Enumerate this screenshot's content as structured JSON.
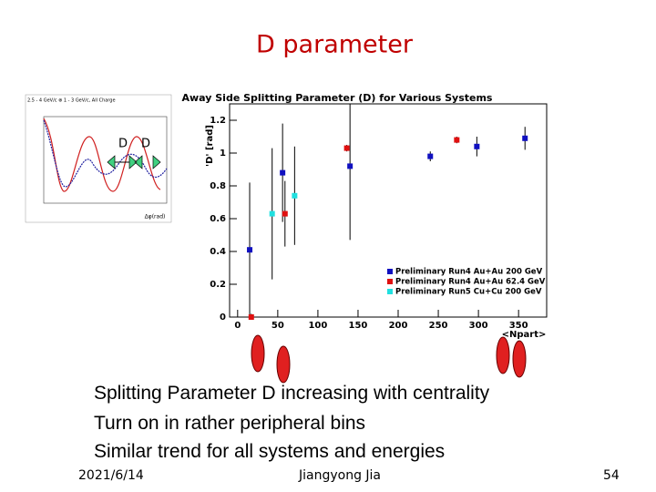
{
  "slide": {
    "title": "D parameter",
    "bullets": [
      "Splitting Parameter D increasing with centrality",
      "Turn on in rather peripheral bins",
      "Similar trend for all systems and energies"
    ],
    "footer": {
      "date": "2021/6/14",
      "author": "Jiangyong Jia",
      "page": "54"
    }
  },
  "inset": {
    "title": "2.5 - 4 GeV/c ⊗ 1 - 3 GeV/c, All Charge",
    "labels": [
      "D",
      "D"
    ],
    "x_label": "Δφ(rad)"
  },
  "chart_data": {
    "type": "scatter",
    "title": "Away Side Splitting Parameter (D) for Various Systems",
    "y_label": "'D' [rad]",
    "x_label": "<Npart>",
    "xlim": [
      -10,
      385
    ],
    "ylim": [
      0,
      1.3
    ],
    "xticks": [
      0,
      50,
      100,
      150,
      200,
      250,
      300,
      350
    ],
    "yticks": [
      0,
      0.2,
      0.4,
      0.6,
      0.8,
      1,
      1.2
    ],
    "legend": "lower right",
    "series": [
      {
        "name": "Preliminary Run4 Au+Au 200 GeV",
        "color": "#1010c0",
        "x": [
          15,
          56,
          140,
          240,
          298,
          358
        ],
        "values": [
          0.41,
          0.88,
          0.92,
          0.98,
          1.04,
          1.09
        ],
        "errors": [
          0.41,
          0.3,
          0.45,
          0.03,
          0.06,
          0.07
        ]
      },
      {
        "name": "Preliminary Run4 Au+Au 62.4 GeV",
        "color": "#e01010",
        "x": [
          17,
          59,
          136,
          273
        ],
        "values": [
          0,
          0.63,
          1.03,
          1.08
        ],
        "errors": [
          0.02,
          0.2,
          0.02,
          0.02
        ]
      },
      {
        "name": "Preliminary Run5 Cu+Cu 200 GeV",
        "color": "#20e0e0",
        "x": [
          43,
          71
        ],
        "values": [
          0.63,
          0.74
        ],
        "errors": [
          0.4,
          0.3
        ]
      }
    ]
  }
}
